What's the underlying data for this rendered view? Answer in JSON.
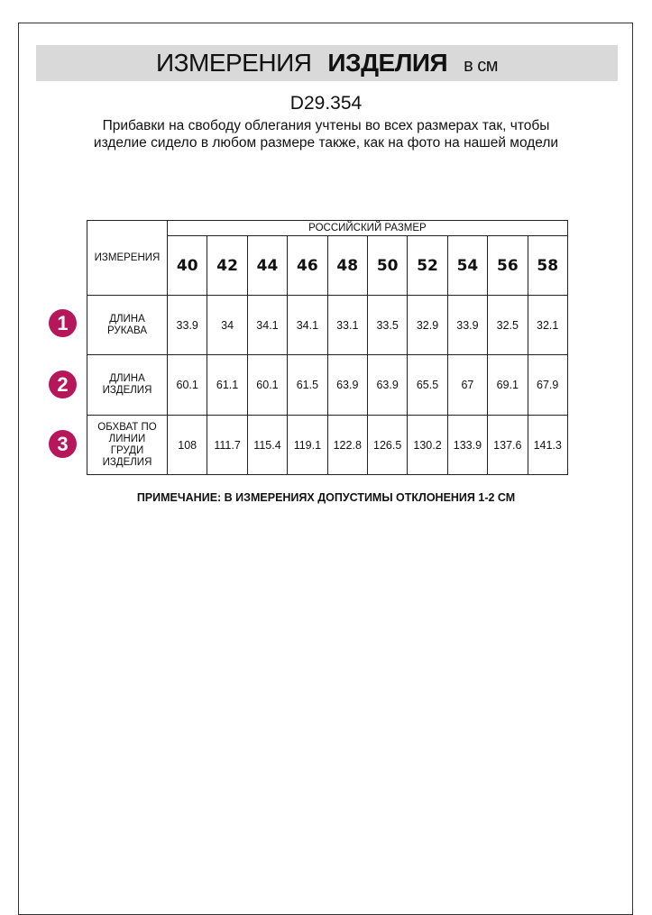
{
  "title": {
    "regular": "ИЗМЕРЕНИЯ",
    "bold": "ИЗДЕЛИЯ",
    "unit": "в см"
  },
  "code": "D29.354",
  "description": "Прибавки на свободу облегания учтены во всех размерах так, чтобы изделие сидело в любом размере также, как на фото на нашей модели",
  "table": {
    "measure_header": "ИЗМЕРЕНИЯ",
    "size_header": "РОССИЙСКИЙ РАЗМЕР",
    "sizes": [
      "40",
      "42",
      "44",
      "46",
      "48",
      "50",
      "52",
      "54",
      "56",
      "58"
    ],
    "rows": [
      {
        "num": "1",
        "label": "ДЛИНА РУКАВА",
        "values": [
          "33.9",
          "34",
          "34.1",
          "34.1",
          "33.1",
          "33.5",
          "32.9",
          "33.9",
          "32.5",
          "32.1"
        ]
      },
      {
        "num": "2",
        "label": "ДЛИНА ИЗДЕЛИЯ",
        "values": [
          "60.1",
          "61.1",
          "60.1",
          "61.5",
          "63.9",
          "63.9",
          "65.5",
          "67",
          "69.1",
          "67.9"
        ]
      },
      {
        "num": "3",
        "label": "ОБХВАТ ПО ЛИНИИ ГРУДИ ИЗДЕЛИЯ",
        "values": [
          "108",
          "111.7",
          "115.4",
          "119.1",
          "122.8",
          "126.5",
          "130.2",
          "133.9",
          "137.6",
          "141.3"
        ]
      }
    ]
  },
  "note": "ПРИМЕЧАНИЕ: В ИЗМЕРЕНИЯХ ДОПУСТИМЫ ОТКЛОНЕНИЯ 1-2 СМ",
  "colors": {
    "badge": "#b5175a",
    "band": "#d9d9d9"
  }
}
